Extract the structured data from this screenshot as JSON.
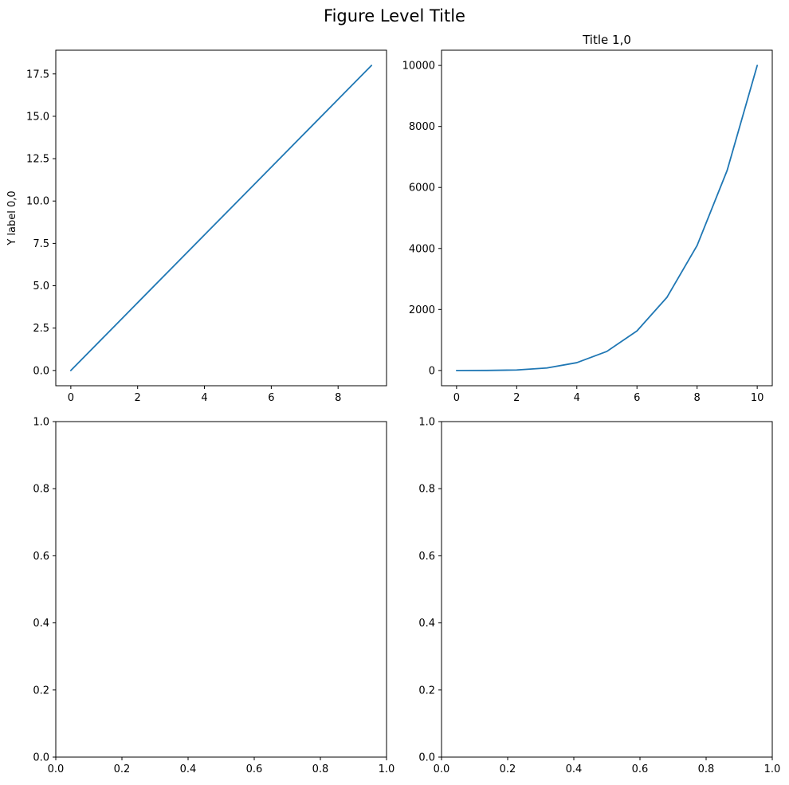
{
  "figure": {
    "title": "Figure Level Title",
    "background": "#ffffff"
  },
  "chart_data": [
    {
      "type": "line",
      "title": "",
      "xlabel": "",
      "ylabel": "Y label 0,0",
      "xlim": [
        -0.45,
        9.45
      ],
      "ylim": [
        -0.9,
        18.9
      ],
      "xticks": [
        0,
        2,
        4,
        6,
        8
      ],
      "xtick_labels": [
        "0",
        "2",
        "4",
        "6",
        "8"
      ],
      "yticks": [
        0,
        2.5,
        5,
        7.5,
        10,
        12.5,
        15,
        17.5
      ],
      "ytick_labels": [
        "0.0",
        "2.5",
        "5.0",
        "7.5",
        "10.0",
        "12.5",
        "15.0",
        "17.5"
      ],
      "grid": false,
      "series": [
        {
          "color": "#1f77b4",
          "x": [
            0,
            1,
            2,
            3,
            4,
            5,
            6,
            7,
            8,
            9
          ],
          "y": [
            0,
            2,
            4,
            6,
            8,
            10,
            12,
            14,
            16,
            18
          ]
        }
      ]
    },
    {
      "type": "line",
      "title": "Title 1,0",
      "xlabel": "",
      "ylabel": "",
      "xlim": [
        -0.5,
        10.5
      ],
      "ylim": [
        -500,
        10500
      ],
      "xticks": [
        0,
        2,
        4,
        6,
        8,
        10
      ],
      "xtick_labels": [
        "0",
        "2",
        "4",
        "6",
        "8",
        "10"
      ],
      "yticks": [
        0,
        2000,
        4000,
        6000,
        8000,
        10000
      ],
      "ytick_labels": [
        "0",
        "2000",
        "4000",
        "6000",
        "8000",
        "10000"
      ],
      "grid": false,
      "series": [
        {
          "color": "#1f77b4",
          "x": [
            0,
            1,
            2,
            3,
            4,
            5,
            6,
            7,
            8,
            9,
            10
          ],
          "y": [
            0,
            1,
            16,
            81,
            256,
            625,
            1296,
            2401,
            4096,
            6561,
            10000
          ]
        }
      ]
    },
    {
      "type": "line",
      "title": "",
      "xlabel": "",
      "ylabel": "",
      "xlim": [
        0,
        1
      ],
      "ylim": [
        0,
        1
      ],
      "xticks": [
        0,
        0.2,
        0.4,
        0.6,
        0.8,
        1
      ],
      "xtick_labels": [
        "0.0",
        "0.2",
        "0.4",
        "0.6",
        "0.8",
        "1.0"
      ],
      "yticks": [
        0,
        0.2,
        0.4,
        0.6,
        0.8,
        1
      ],
      "ytick_labels": [
        "0.0",
        "0.2",
        "0.4",
        "0.6",
        "0.8",
        "1.0"
      ],
      "grid": false,
      "series": []
    },
    {
      "type": "line",
      "title": "",
      "xlabel": "",
      "ylabel": "",
      "xlim": [
        0,
        1
      ],
      "ylim": [
        0,
        1
      ],
      "xticks": [
        0,
        0.2,
        0.4,
        0.6,
        0.8,
        1
      ],
      "xtick_labels": [
        "0.0",
        "0.2",
        "0.4",
        "0.6",
        "0.8",
        "1.0"
      ],
      "yticks": [
        0,
        0.2,
        0.4,
        0.6,
        0.8,
        1
      ],
      "ytick_labels": [
        "0.0",
        "0.2",
        "0.4",
        "0.6",
        "0.8",
        "1.0"
      ],
      "grid": false,
      "series": []
    }
  ]
}
